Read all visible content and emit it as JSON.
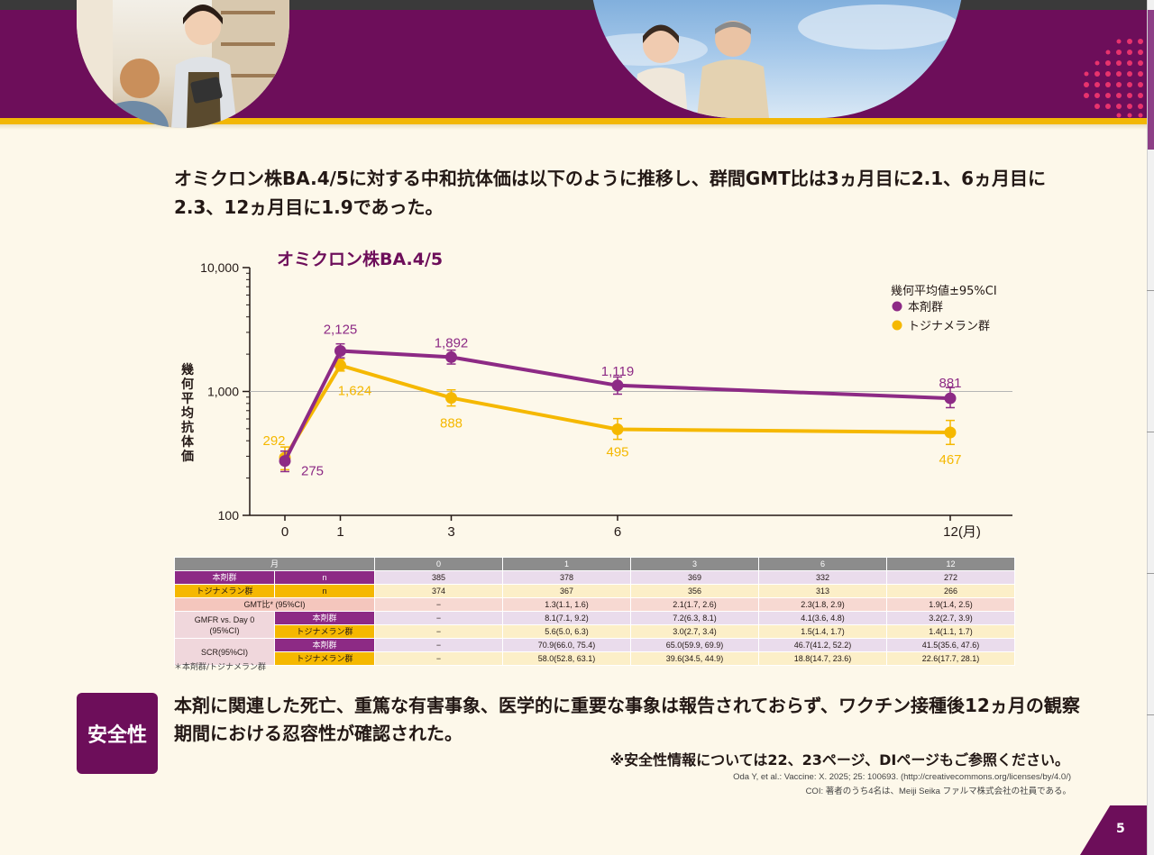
{
  "headline": "オミクロン株BA.4/5に対する中和抗体価は以下のように推移し、群間GMT比は3ヵ月目に2.1、6ヵ月目に2.3、12ヵ月目に1.9であった。",
  "chart_data": {
    "type": "line",
    "title": "オミクロン株BA.4/5",
    "ylabel": "幾何平均抗体価",
    "xlabel": "",
    "x_unit": "(月)",
    "yscale": "log",
    "ylim": [
      100,
      10000
    ],
    "yticks": [
      "10,000",
      "1,000",
      "100"
    ],
    "x": [
      0,
      1,
      3,
      6,
      12
    ],
    "legend_title": "幾何平均値±95%CI",
    "legend_position": "top-right",
    "grid_line_at": 1000,
    "series": [
      {
        "name": "本剤群",
        "color": "#8d2a85",
        "values": [
          275,
          2125,
          1892,
          1119,
          881
        ],
        "labels": [
          "275",
          "2,125",
          "1,892",
          "1,119",
          "881"
        ]
      },
      {
        "name": "トジナメラン群",
        "color": "#f5b800",
        "values": [
          292,
          1624,
          888,
          495,
          467
        ],
        "labels": [
          "292",
          "1,624",
          "888",
          "495",
          "467"
        ]
      }
    ]
  },
  "table": {
    "header": [
      "月",
      "0",
      "1",
      "3",
      "6",
      "12"
    ],
    "n_label": "n",
    "group_a": "本剤群",
    "group_b": "トジナメラン群",
    "n_a": [
      "385",
      "378",
      "369",
      "332",
      "272"
    ],
    "n_b": [
      "374",
      "367",
      "356",
      "313",
      "266"
    ],
    "gmt_label": "GMT比* (95%CI)",
    "gmt": [
      "−",
      "1.3(1.1, 1.6)",
      "2.1(1.7, 2.6)",
      "2.3(1.8, 2.9)",
      "1.9(1.4, 2.5)"
    ],
    "gmfr_label_1": "GMFR vs. Day 0",
    "gmfr_label_2": "(95%CI)",
    "gmfr_a": [
      "−",
      "8.1(7.1, 9.2)",
      "7.2(6.3, 8.1)",
      "4.1(3.6, 4.8)",
      "3.2(2.7, 3.9)"
    ],
    "gmfr_b": [
      "−",
      "5.6(5.0, 6.3)",
      "3.0(2.7, 3.4)",
      "1.5(1.4, 1.7)",
      "1.4(1.1, 1.7)"
    ],
    "scr_label": "SCR(95%CI)",
    "scr_a": [
      "−",
      "70.9(66.0, 75.4)",
      "65.0(59.9, 69.9)",
      "46.7(41.2, 52.2)",
      "41.5(35.6, 47.6)"
    ],
    "scr_b": [
      "−",
      "58.0(52.8, 63.1)",
      "39.6(34.5, 44.9)",
      "18.8(14.7, 23.6)",
      "22.6(17.7, 28.1)"
    ]
  },
  "footnote": "＊本剤群/トジナメラン群",
  "safety": {
    "badge": "安全性",
    "text": "本剤に関連した死亡、重篤な有害事象、医学的に重要な事象は報告されておらず、ワクチン接種後12ヵ月の観察期間における忍容性が確認された。",
    "note": "※安全性情報については22、23ページ、DIページもご参照ください。"
  },
  "citation": "Oda Y, et al.: Vaccine: X. 2025; 25: 100693. (http://creativecommons.org/licenses/by/4.0/)",
  "coi": "COI: 著者のうち4名は、Meiji Seika ファルマ株式会社の社員である。",
  "page_number": "5"
}
